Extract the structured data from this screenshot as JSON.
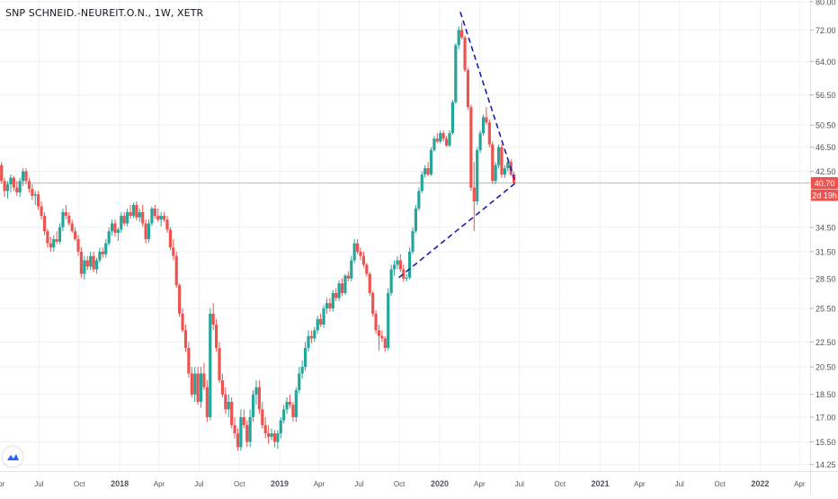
{
  "header": {
    "symbol_line": "SNP SCHNEID.-NEUREIT.O.N., 1W, XETR"
  },
  "badges": {
    "price": "40.70",
    "countdown": "2d 19h"
  },
  "colors": {
    "up": "#26a69a",
    "down": "#ef5350",
    "grid": "#eef1f4",
    "axis_text": "#50535e",
    "price_line": "#f7a3a5",
    "badge": "#ef5350",
    "trendline": "#1c1dab",
    "logo": "#2962ff"
  },
  "chart_data": {
    "type": "candlestick",
    "title": "SNP SCHNEID.-NEUREIT.O.N., 1W, XETR",
    "interval": "1W",
    "exchange": "XETR",
    "y_scale": "log",
    "ylim": [
      13.9,
      80.5
    ],
    "xlim": [
      "2017-04-03",
      "2022-04-25"
    ],
    "grid": true,
    "y_ticks": [
      80.0,
      72.0,
      64.0,
      56.5,
      50.5,
      46.5,
      42.5,
      40.7,
      34.5,
      31.5,
      28.5,
      25.5,
      22.5,
      20.5,
      18.5,
      17.0,
      15.5,
      14.25
    ],
    "y_tick_labels": [
      "80.00",
      "72.00",
      "64.00",
      "56.50",
      "50.50",
      "46.50",
      "42.50",
      "",
      "34.50",
      "31.50",
      "28.50",
      "25.50",
      "22.50",
      "20.50",
      "18.50",
      "17.00",
      "15.50",
      "14.25"
    ],
    "x_ticks": [
      {
        "label": "Apr",
        "date": "2017-04-01",
        "bold": false
      },
      {
        "label": "Jul",
        "date": "2017-07-01",
        "bold": false
      },
      {
        "label": "Oct",
        "date": "2017-10-01",
        "bold": false
      },
      {
        "label": "2018",
        "date": "2018-01-01",
        "bold": true
      },
      {
        "label": "Apr",
        "date": "2018-04-01",
        "bold": false
      },
      {
        "label": "Jul",
        "date": "2018-07-01",
        "bold": false
      },
      {
        "label": "Oct",
        "date": "2018-10-01",
        "bold": false
      },
      {
        "label": "2019",
        "date": "2019-01-01",
        "bold": true
      },
      {
        "label": "Apr",
        "date": "2019-04-01",
        "bold": false
      },
      {
        "label": "Jul",
        "date": "2019-07-01",
        "bold": false
      },
      {
        "label": "Oct",
        "date": "2019-10-01",
        "bold": false
      },
      {
        "label": "2020",
        "date": "2020-01-01",
        "bold": true
      },
      {
        "label": "Apr",
        "date": "2020-04-01",
        "bold": false
      },
      {
        "label": "Jul",
        "date": "2020-07-01",
        "bold": false
      },
      {
        "label": "Oct",
        "date": "2020-10-01",
        "bold": false
      },
      {
        "label": "2021",
        "date": "2021-01-01",
        "bold": true
      },
      {
        "label": "Apr",
        "date": "2021-04-01",
        "bold": false
      },
      {
        "label": "Jul",
        "date": "2021-07-01",
        "bold": false
      },
      {
        "label": "Oct",
        "date": "2021-10-01",
        "bold": false
      },
      {
        "label": "2022",
        "date": "2022-01-01",
        "bold": true
      },
      {
        "label": "Apr",
        "date": "2022-04-01",
        "bold": false
      }
    ],
    "last_price": 40.7,
    "price_line": 40.7,
    "trendlines": [
      {
        "from": [
          "2020-02-17",
          77.0
        ],
        "to": [
          "2020-06-22",
          40.7
        ]
      },
      {
        "from": [
          "2019-09-30",
          28.6
        ],
        "to": [
          "2020-06-22",
          40.7
        ]
      }
    ],
    "ohlc": [
      [
        "2017-04-03",
        43.5,
        44.0,
        40.6,
        41.0
      ],
      [
        "2017-04-10",
        41.0,
        41.5,
        38.6,
        39.5
      ],
      [
        "2017-04-17",
        39.5,
        41.0,
        38.4,
        40.5
      ],
      [
        "2017-04-24",
        40.5,
        42.0,
        39.3,
        41.5
      ],
      [
        "2017-05-01",
        41.5,
        41.8,
        39.5,
        40.0
      ],
      [
        "2017-05-08",
        40.0,
        41.0,
        38.8,
        39.3
      ],
      [
        "2017-05-15",
        39.3,
        41.5,
        38.6,
        41.0
      ],
      [
        "2017-05-22",
        41.0,
        43.0,
        40.2,
        42.5
      ],
      [
        "2017-05-29",
        42.5,
        43.0,
        40.5,
        41.0
      ],
      [
        "2017-06-05",
        41.0,
        41.5,
        39.3,
        39.8
      ],
      [
        "2017-06-12",
        39.8,
        40.5,
        38.2,
        38.8
      ],
      [
        "2017-06-19",
        38.8,
        39.5,
        37.5,
        39.0
      ],
      [
        "2017-06-26",
        39.0,
        39.5,
        36.8,
        37.3
      ],
      [
        "2017-07-03",
        37.3,
        38.0,
        35.5,
        36.0
      ],
      [
        "2017-07-10",
        36.0,
        36.5,
        33.5,
        34.0
      ],
      [
        "2017-07-17",
        34.0,
        34.3,
        32.0,
        32.5
      ],
      [
        "2017-07-24",
        32.5,
        33.3,
        31.5,
        32.0
      ],
      [
        "2017-07-31",
        32.0,
        33.5,
        31.5,
        33.0
      ],
      [
        "2017-08-07",
        33.0,
        34.0,
        32.4,
        32.7
      ],
      [
        "2017-08-14",
        32.7,
        35.0,
        32.4,
        34.5
      ],
      [
        "2017-08-21",
        34.5,
        37.0,
        34.0,
        36.5
      ],
      [
        "2017-08-28",
        36.5,
        37.5,
        35.5,
        36.0
      ],
      [
        "2017-09-04",
        36.0,
        36.5,
        34.7,
        35.0
      ],
      [
        "2017-09-11",
        35.0,
        35.5,
        33.8,
        34.0
      ],
      [
        "2017-09-18",
        34.0,
        34.5,
        32.8,
        33.0
      ],
      [
        "2017-09-25",
        33.0,
        33.5,
        31.0,
        31.5
      ],
      [
        "2017-10-02",
        31.5,
        32.0,
        28.6,
        29.0
      ],
      [
        "2017-10-09",
        29.0,
        31.0,
        28.4,
        30.5
      ],
      [
        "2017-10-16",
        30.5,
        31.0,
        29.4,
        29.8
      ],
      [
        "2017-10-23",
        29.8,
        31.5,
        29.4,
        31.0
      ],
      [
        "2017-10-30",
        31.0,
        31.5,
        29.2,
        29.5
      ],
      [
        "2017-11-06",
        29.5,
        30.8,
        29.0,
        30.5
      ],
      [
        "2017-11-13",
        30.5,
        32.0,
        30.2,
        31.5
      ],
      [
        "2017-11-20",
        31.5,
        32.0,
        30.8,
        31.2
      ],
      [
        "2017-11-27",
        31.2,
        33.0,
        30.8,
        32.5
      ],
      [
        "2017-12-04",
        32.5,
        34.5,
        32.2,
        34.0
      ],
      [
        "2017-12-11",
        34.0,
        35.5,
        33.5,
        35.0
      ],
      [
        "2017-12-18",
        35.0,
        35.5,
        33.3,
        33.8
      ],
      [
        "2017-12-25",
        33.8,
        34.5,
        32.8,
        34.2
      ],
      [
        "2018-01-01",
        34.2,
        36.5,
        33.8,
        36.0
      ],
      [
        "2018-01-08",
        36.0,
        36.5,
        34.7,
        35.0
      ],
      [
        "2018-01-15",
        35.0,
        37.0,
        34.6,
        36.5
      ],
      [
        "2018-01-22",
        36.5,
        37.5,
        35.6,
        36.0
      ],
      [
        "2018-01-29",
        36.0,
        37.8,
        35.7,
        37.5
      ],
      [
        "2018-02-05",
        37.5,
        38.0,
        35.4,
        35.8
      ],
      [
        "2018-02-12",
        35.8,
        37.0,
        35.2,
        36.5
      ],
      [
        "2018-02-19",
        36.5,
        37.5,
        34.6,
        35.0
      ],
      [
        "2018-02-26",
        35.0,
        35.5,
        32.5,
        33.0
      ],
      [
        "2018-03-05",
        33.0,
        35.5,
        32.6,
        35.0
      ],
      [
        "2018-03-12",
        35.0,
        37.3,
        34.7,
        37.0
      ],
      [
        "2018-03-19",
        37.0,
        37.5,
        35.6,
        36.0
      ],
      [
        "2018-03-26",
        36.0,
        37.0,
        35.2,
        35.5
      ],
      [
        "2018-04-02",
        35.5,
        36.5,
        34.6,
        36.0
      ],
      [
        "2018-04-09",
        36.0,
        36.5,
        35.2,
        35.5
      ],
      [
        "2018-04-16",
        35.5,
        36.0,
        33.8,
        34.2
      ],
      [
        "2018-04-23",
        34.2,
        34.5,
        31.7,
        32.0
      ],
      [
        "2018-04-30",
        32.0,
        33.0,
        30.5,
        31.0
      ],
      [
        "2018-05-07",
        31.0,
        31.5,
        27.5,
        27.8
      ],
      [
        "2018-05-14",
        27.8,
        28.0,
        24.7,
        25.0
      ],
      [
        "2018-05-21",
        25.0,
        25.5,
        23.3,
        23.5
      ],
      [
        "2018-05-28",
        23.5,
        24.0,
        21.7,
        22.0
      ],
      [
        "2018-06-04",
        22.0,
        22.5,
        19.7,
        20.0
      ],
      [
        "2018-06-11",
        20.0,
        20.5,
        18.3,
        18.5
      ],
      [
        "2018-06-18",
        18.5,
        20.5,
        18.0,
        20.0
      ],
      [
        "2018-06-25",
        20.0,
        20.5,
        17.8,
        18.0
      ],
      [
        "2018-07-02",
        18.0,
        20.5,
        17.6,
        20.0
      ],
      [
        "2018-07-09",
        20.0,
        20.8,
        18.8,
        19.0
      ],
      [
        "2018-07-16",
        19.0,
        19.5,
        16.7,
        17.0
      ],
      [
        "2018-07-23",
        17.0,
        25.5,
        16.8,
        25.0
      ],
      [
        "2018-07-30",
        25.0,
        26.0,
        23.5,
        24.0
      ],
      [
        "2018-08-06",
        24.0,
        24.5,
        21.7,
        22.0
      ],
      [
        "2018-08-13",
        22.0,
        22.5,
        19.3,
        19.5
      ],
      [
        "2018-08-20",
        19.5,
        20.0,
        18.3,
        18.5
      ],
      [
        "2018-08-27",
        18.5,
        19.0,
        17.2,
        17.5
      ],
      [
        "2018-09-03",
        17.5,
        18.5,
        17.0,
        18.0
      ],
      [
        "2018-09-10",
        18.0,
        18.3,
        16.3,
        16.5
      ],
      [
        "2018-09-17",
        16.5,
        17.0,
        15.7,
        16.0
      ],
      [
        "2018-09-24",
        16.0,
        16.3,
        15.0,
        15.2
      ],
      [
        "2018-10-01",
        15.2,
        17.5,
        15.0,
        17.0
      ],
      [
        "2018-10-08",
        17.0,
        17.5,
        16.3,
        16.5
      ],
      [
        "2018-10-15",
        16.5,
        16.8,
        15.2,
        15.5
      ],
      [
        "2018-10-22",
        15.5,
        17.5,
        15.2,
        17.0
      ],
      [
        "2018-10-29",
        17.0,
        18.8,
        16.7,
        18.5
      ],
      [
        "2018-11-05",
        18.5,
        19.5,
        17.8,
        19.0
      ],
      [
        "2018-11-12",
        19.0,
        19.5,
        17.2,
        17.5
      ],
      [
        "2018-11-19",
        17.5,
        18.0,
        16.3,
        16.5
      ],
      [
        "2018-11-26",
        16.5,
        17.0,
        15.7,
        16.0
      ],
      [
        "2018-12-03",
        16.0,
        16.5,
        15.4,
        15.8
      ],
      [
        "2018-12-10",
        15.8,
        16.3,
        15.6,
        16.0
      ],
      [
        "2018-12-17",
        16.0,
        16.2,
        15.2,
        15.5
      ],
      [
        "2018-12-24",
        15.5,
        16.2,
        15.1,
        16.0
      ],
      [
        "2018-12-31",
        16.0,
        17.0,
        15.7,
        16.8
      ],
      [
        "2019-01-07",
        16.8,
        17.8,
        16.6,
        17.5
      ],
      [
        "2019-01-14",
        17.5,
        18.3,
        17.2,
        18.0
      ],
      [
        "2019-01-21",
        18.0,
        18.5,
        17.6,
        17.8
      ],
      [
        "2019-01-28",
        17.8,
        18.0,
        16.7,
        17.0
      ],
      [
        "2019-02-04",
        17.0,
        19.0,
        16.7,
        18.8
      ],
      [
        "2019-02-11",
        18.8,
        20.5,
        18.6,
        20.0
      ],
      [
        "2019-02-18",
        20.0,
        21.0,
        19.6,
        20.5
      ],
      [
        "2019-02-25",
        20.5,
        22.5,
        20.2,
        22.0
      ],
      [
        "2019-03-04",
        22.0,
        23.5,
        21.7,
        23.0
      ],
      [
        "2019-03-11",
        23.0,
        23.5,
        22.4,
        22.8
      ],
      [
        "2019-03-18",
        22.8,
        23.8,
        22.5,
        23.5
      ],
      [
        "2019-03-25",
        23.5,
        24.8,
        23.2,
        24.5
      ],
      [
        "2019-04-01",
        24.5,
        25.0,
        23.8,
        24.0
      ],
      [
        "2019-04-08",
        24.0,
        25.8,
        23.7,
        25.5
      ],
      [
        "2019-04-15",
        25.5,
        26.5,
        25.0,
        26.0
      ],
      [
        "2019-04-22",
        26.0,
        26.5,
        25.2,
        25.5
      ],
      [
        "2019-04-29",
        25.5,
        27.3,
        25.2,
        27.0
      ],
      [
        "2019-05-06",
        27.0,
        27.5,
        26.2,
        26.5
      ],
      [
        "2019-05-13",
        26.5,
        28.3,
        26.2,
        28.0
      ],
      [
        "2019-05-20",
        28.0,
        28.5,
        26.7,
        27.0
      ],
      [
        "2019-05-27",
        27.0,
        29.0,
        26.8,
        28.8
      ],
      [
        "2019-06-03",
        28.8,
        29.3,
        28.2,
        28.5
      ],
      [
        "2019-06-10",
        28.5,
        31.0,
        28.2,
        30.5
      ],
      [
        "2019-06-17",
        30.5,
        33.0,
        30.2,
        32.5
      ],
      [
        "2019-06-24",
        32.5,
        33.0,
        31.2,
        31.5
      ],
      [
        "2019-07-01",
        31.5,
        32.0,
        30.5,
        31.0
      ],
      [
        "2019-07-08",
        31.0,
        31.5,
        29.7,
        30.0
      ],
      [
        "2019-07-15",
        30.0,
        30.2,
        28.7,
        29.0
      ],
      [
        "2019-07-22",
        29.0,
        29.2,
        26.7,
        27.0
      ],
      [
        "2019-07-29",
        27.0,
        27.2,
        24.7,
        25.0
      ],
      [
        "2019-08-05",
        25.0,
        25.3,
        23.2,
        23.5
      ],
      [
        "2019-08-12",
        23.5,
        24.0,
        21.8,
        23.0
      ],
      [
        "2019-08-19",
        23.0,
        23.5,
        22.5,
        22.8
      ],
      [
        "2019-08-26",
        22.8,
        23.0,
        21.7,
        22.0
      ],
      [
        "2019-09-02",
        22.0,
        27.5,
        21.8,
        27.0
      ],
      [
        "2019-09-09",
        27.0,
        30.0,
        26.7,
        29.5
      ],
      [
        "2019-09-16",
        29.5,
        30.5,
        28.8,
        30.0
      ],
      [
        "2019-09-23",
        30.0,
        31.0,
        29.5,
        30.5
      ],
      [
        "2019-09-30",
        30.5,
        31.2,
        29.2,
        29.5
      ],
      [
        "2019-10-07",
        29.5,
        30.0,
        28.2,
        28.5
      ],
      [
        "2019-10-14",
        28.5,
        29.0,
        28.2,
        28.6
      ],
      [
        "2019-10-21",
        28.6,
        32.0,
        28.4,
        31.5
      ],
      [
        "2019-10-28",
        31.5,
        34.5,
        31.2,
        34.0
      ],
      [
        "2019-11-04",
        34.0,
        37.5,
        33.8,
        37.0
      ],
      [
        "2019-11-11",
        37.0,
        40.0,
        36.7,
        39.5
      ],
      [
        "2019-11-18",
        39.5,
        42.5,
        39.2,
        42.0
      ],
      [
        "2019-11-25",
        42.0,
        43.5,
        41.5,
        43.0
      ],
      [
        "2019-12-02",
        43.0,
        44.0,
        41.7,
        42.0
      ],
      [
        "2019-12-09",
        42.0,
        46.5,
        41.8,
        46.0
      ],
      [
        "2019-12-16",
        46.0,
        48.5,
        45.7,
        48.0
      ],
      [
        "2019-12-23",
        48.0,
        49.0,
        47.2,
        47.5
      ],
      [
        "2019-12-30",
        47.5,
        49.5,
        47.2,
        49.0
      ],
      [
        "2020-01-06",
        49.0,
        49.5,
        47.5,
        48.0
      ],
      [
        "2020-01-13",
        48.0,
        48.5,
        46.5,
        46.8
      ],
      [
        "2020-01-20",
        46.8,
        49.5,
        46.5,
        49.0
      ],
      [
        "2020-01-27",
        49.0,
        55.5,
        48.7,
        55.0
      ],
      [
        "2020-02-03",
        55.0,
        68.5,
        54.7,
        68.0
      ],
      [
        "2020-02-10",
        68.0,
        73.0,
        67.0,
        72.0
      ],
      [
        "2020-02-17",
        72.0,
        74.0,
        69.5,
        70.0
      ],
      [
        "2020-02-24",
        70.0,
        70.5,
        61.5,
        62.0
      ],
      [
        "2020-03-02",
        62.0,
        62.5,
        53.5,
        54.0
      ],
      [
        "2020-03-09",
        54.0,
        54.5,
        39.5,
        40.0
      ],
      [
        "2020-03-16",
        40.0,
        44.0,
        34.0,
        38.0
      ],
      [
        "2020-03-23",
        38.0,
        46.5,
        37.5,
        46.0
      ],
      [
        "2020-03-30",
        46.0,
        49.5,
        45.5,
        49.0
      ],
      [
        "2020-04-06",
        49.0,
        52.5,
        48.5,
        52.0
      ],
      [
        "2020-04-13",
        52.0,
        54.0,
        50.5,
        51.0
      ],
      [
        "2020-04-20",
        51.0,
        51.5,
        46.5,
        47.0
      ],
      [
        "2020-04-27",
        47.0,
        47.5,
        40.5,
        41.0
      ],
      [
        "2020-05-04",
        41.0,
        44.0,
        40.5,
        43.5
      ],
      [
        "2020-05-11",
        43.5,
        47.0,
        43.0,
        46.5
      ],
      [
        "2020-05-18",
        46.5,
        47.0,
        41.5,
        42.0
      ],
      [
        "2020-05-25",
        42.0,
        43.5,
        41.5,
        43.0
      ],
      [
        "2020-06-01",
        43.0,
        44.5,
        42.5,
        44.0
      ],
      [
        "2020-06-08",
        44.0,
        44.5,
        41.7,
        42.0
      ],
      [
        "2020-06-15",
        42.0,
        42.5,
        40.5,
        40.7
      ]
    ]
  }
}
